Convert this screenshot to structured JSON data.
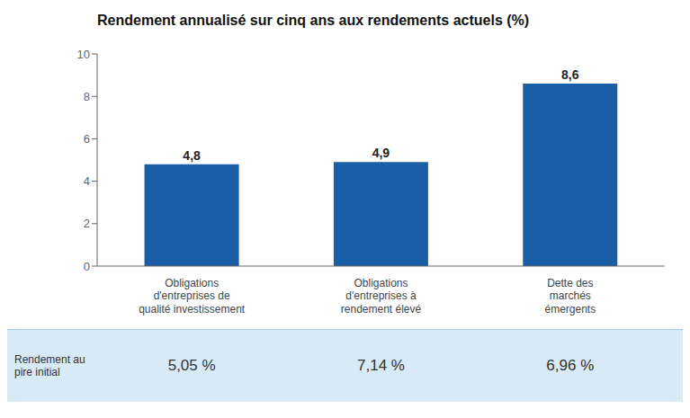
{
  "chart_data": {
    "type": "bar",
    "title": "Rendement annualisé sur cinq ans aux rendements actuels (%)",
    "categories": [
      "Obligations\nd'entreprises de\nqualité investissement",
      "Obligations\nd'entreprises à\nrendement élevé",
      "Dette des\nmarchés\némergents"
    ],
    "values": [
      4.8,
      4.9,
      8.6
    ],
    "value_labels": [
      "4,8",
      "4,9",
      "8,6"
    ],
    "data_labels": true,
    "color": "#1a5ea8",
    "ylim": [
      0,
      10
    ],
    "yticks": [
      0,
      2,
      4,
      6,
      8,
      10
    ],
    "grid": false,
    "annotations": [
      {
        "text": "Rendement au\npire initial"
      },
      {
        "text": "5,05 %",
        "category": "Obligations\nd'entreprises de\nqualité investissement"
      },
      {
        "text": "7,14 %",
        "category": "Obligations\nd'entreprises à\nrendement élevé"
      },
      {
        "text": "6,96 %",
        "category": "Dette des\nmarchés\némergents"
      }
    ]
  }
}
